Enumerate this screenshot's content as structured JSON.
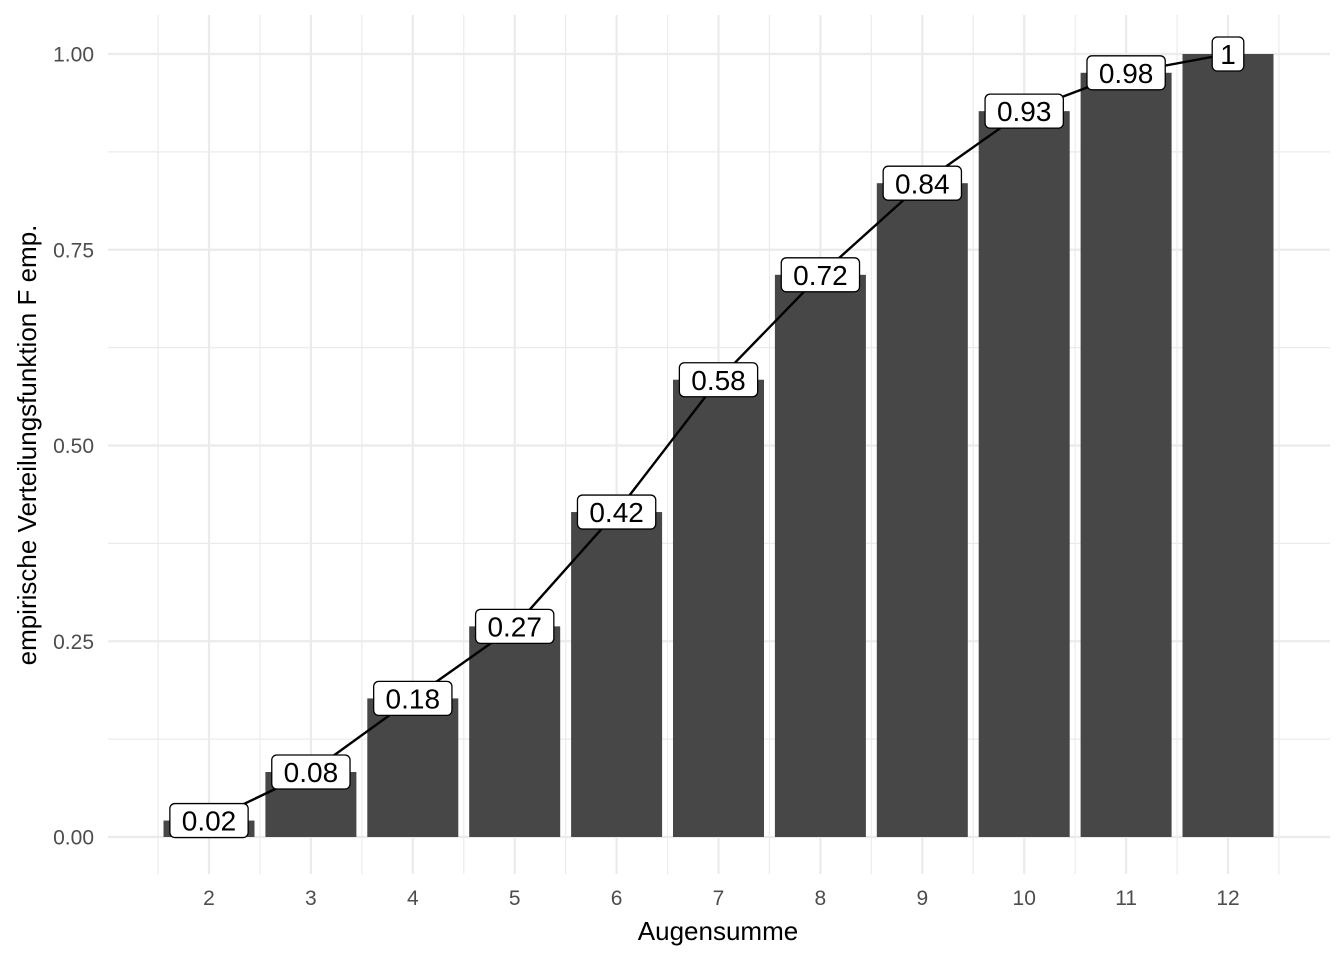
{
  "chart_data": {
    "type": "bar",
    "title": "",
    "xlabel": "Augensumme",
    "ylabel": "empirische Verteilungsfunktion F emp.",
    "categories": [
      "2",
      "3",
      "4",
      "5",
      "6",
      "7",
      "8",
      "9",
      "10",
      "11",
      "12"
    ],
    "values": [
      0.021,
      0.083,
      0.177,
      0.269,
      0.415,
      0.584,
      0.718,
      0.835,
      0.927,
      0.976,
      1.0
    ],
    "data_labels": [
      "0.02",
      "0.08",
      "0.18",
      "0.27",
      "0.42",
      "0.58",
      "0.72",
      "0.84",
      "0.93",
      "0.98",
      "1"
    ],
    "overlay": "line",
    "ylim": [
      -0.04,
      1.04
    ],
    "yticks": [
      0,
      0.25,
      0.5,
      0.75,
      1
    ],
    "ytick_labels": [
      "0.00",
      "0.25",
      "0.50",
      "0.75",
      "1.00"
    ],
    "grid": true,
    "legend": "none",
    "colors": {
      "bar": "#474747",
      "line": "#000000",
      "grid": "#ebebeb",
      "label_fill": "#ffffff",
      "label_border": "#000000"
    }
  }
}
